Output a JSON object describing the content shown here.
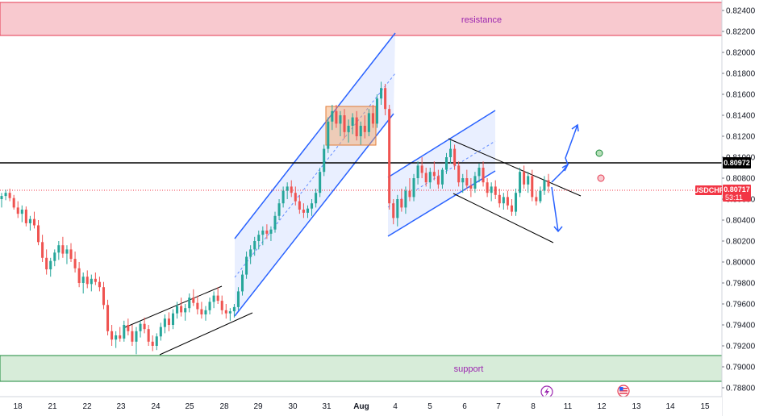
{
  "chart_data": {
    "type": "candlestick",
    "symbol": "USDCHF",
    "current_price": "0.80717",
    "countdown": "53:11",
    "marked_level": "0.80972",
    "ylim": [
      0.7876,
      0.8241
    ],
    "y_ticks": [
      "0.82400",
      "0.82200",
      "0.82000",
      "0.81800",
      "0.81600",
      "0.81400",
      "0.81200",
      "0.81000",
      "0.80800",
      "0.80600",
      "0.80400",
      "0.80200",
      "0.80000",
      "0.79800",
      "0.79600",
      "0.79400",
      "0.79200",
      "0.79000",
      "0.78800"
    ],
    "x_ticks": [
      "18",
      "21",
      "22",
      "23",
      "24",
      "25",
      "26",
      "28",
      "29",
      "30",
      "31",
      "Aug",
      "4",
      "5",
      "6",
      "7",
      "8",
      "11",
      "12",
      "13",
      "14",
      "15"
    ],
    "zones": [
      {
        "name": "resistance",
        "low": 0.8216,
        "high": 0.8248
      },
      {
        "name": "support",
        "low": 0.78915,
        "high": 0.79175
      }
    ],
    "colors": {
      "up": "#26a69a",
      "down": "#ef5350",
      "trendline": "#2962ff",
      "resistance_fill": "#f8c9cf",
      "resistance_border": "#e53950",
      "resistance_text": "#9c27b0",
      "support_fill": "#d7ecd9",
      "support_border": "#1b8a3a",
      "support_text": "#9c27b0",
      "current_tag": "#f23645",
      "level_line": "#000000"
    },
    "candles": [
      [
        0.806,
        0.8066,
        0.8052,
        0.8063
      ],
      [
        0.8063,
        0.8069,
        0.8059,
        0.8066
      ],
      [
        0.8066,
        0.807,
        0.8058,
        0.8061
      ],
      [
        0.8061,
        0.8064,
        0.805,
        0.8052
      ],
      [
        0.8052,
        0.8058,
        0.8042,
        0.8046
      ],
      [
        0.8046,
        0.8054,
        0.8038,
        0.805
      ],
      [
        0.805,
        0.8053,
        0.8034,
        0.8037
      ],
      [
        0.8037,
        0.8044,
        0.803,
        0.8041
      ],
      [
        0.8041,
        0.8048,
        0.8032,
        0.8035
      ],
      [
        0.8035,
        0.804,
        0.8016,
        0.8019
      ],
      [
        0.8019,
        0.8026,
        0.8,
        0.8004
      ],
      [
        0.8004,
        0.8012,
        0.7988,
        0.7993
      ],
      [
        0.7993,
        0.8004,
        0.7986,
        0.8001
      ],
      [
        0.8001,
        0.8012,
        0.7996,
        0.8009
      ],
      [
        0.8009,
        0.802,
        0.8002,
        0.8016
      ],
      [
        0.8016,
        0.8024,
        0.8004,
        0.8008
      ],
      [
        0.8008,
        0.8016,
        0.7998,
        0.8012
      ],
      [
        0.8012,
        0.8018,
        0.8,
        0.8003
      ],
      [
        0.8003,
        0.801,
        0.799,
        0.7994
      ],
      [
        0.7994,
        0.8,
        0.7976,
        0.798
      ],
      [
        0.798,
        0.799,
        0.797,
        0.7986
      ],
      [
        0.7986,
        0.7992,
        0.7975,
        0.7979
      ],
      [
        0.7979,
        0.7988,
        0.7972,
        0.7984
      ],
      [
        0.7984,
        0.799,
        0.7978,
        0.7981
      ],
      [
        0.7981,
        0.7986,
        0.7972,
        0.7976
      ],
      [
        0.7976,
        0.7981,
        0.7955,
        0.7959
      ],
      [
        0.7959,
        0.7964,
        0.793,
        0.7934
      ],
      [
        0.7934,
        0.794,
        0.792,
        0.7926
      ],
      [
        0.7926,
        0.7934,
        0.7918,
        0.793
      ],
      [
        0.793,
        0.7938,
        0.7924,
        0.7927
      ],
      [
        0.7927,
        0.7944,
        0.7924,
        0.794
      ],
      [
        0.794,
        0.7946,
        0.793,
        0.7934
      ],
      [
        0.7934,
        0.794,
        0.792,
        0.7924
      ],
      [
        0.7924,
        0.7938,
        0.7912,
        0.7934
      ],
      [
        0.7934,
        0.7944,
        0.7928,
        0.7941
      ],
      [
        0.7941,
        0.7947,
        0.7932,
        0.7936
      ],
      [
        0.7936,
        0.794,
        0.792,
        0.7924
      ],
      [
        0.7924,
        0.793,
        0.7915,
        0.792
      ],
      [
        0.792,
        0.7932,
        0.7916,
        0.7929
      ],
      [
        0.7929,
        0.7942,
        0.7925,
        0.7938
      ],
      [
        0.7938,
        0.795,
        0.7932,
        0.7946
      ],
      [
        0.7946,
        0.7952,
        0.7934,
        0.794
      ],
      [
        0.794,
        0.7955,
        0.7936,
        0.7951
      ],
      [
        0.7951,
        0.7962,
        0.7946,
        0.7958
      ],
      [
        0.7958,
        0.7966,
        0.7948,
        0.7952
      ],
      [
        0.7952,
        0.796,
        0.7944,
        0.7956
      ],
      [
        0.7956,
        0.797,
        0.7952,
        0.7966
      ],
      [
        0.7966,
        0.7974,
        0.7958,
        0.7961
      ],
      [
        0.7961,
        0.7968,
        0.795,
        0.7955
      ],
      [
        0.7955,
        0.7962,
        0.7946,
        0.795
      ],
      [
        0.795,
        0.7958,
        0.7944,
        0.7954
      ],
      [
        0.7954,
        0.7966,
        0.795,
        0.7962
      ],
      [
        0.7962,
        0.7972,
        0.7956,
        0.7968
      ],
      [
        0.7968,
        0.7976,
        0.796,
        0.7963
      ],
      [
        0.7963,
        0.7968,
        0.795,
        0.7954
      ],
      [
        0.7954,
        0.796,
        0.7946,
        0.7951
      ],
      [
        0.7951,
        0.7956,
        0.7944,
        0.7953
      ],
      [
        0.7953,
        0.796,
        0.7947,
        0.7957
      ],
      [
        0.7957,
        0.7976,
        0.7954,
        0.7972
      ],
      [
        0.7972,
        0.7992,
        0.7968,
        0.7988
      ],
      [
        0.7988,
        0.801,
        0.7984,
        0.8005
      ],
      [
        0.8005,
        0.8016,
        0.7998,
        0.8012
      ],
      [
        0.8012,
        0.8024,
        0.8006,
        0.802
      ],
      [
        0.802,
        0.803,
        0.8012,
        0.8026
      ],
      [
        0.8026,
        0.8034,
        0.8016,
        0.803
      ],
      [
        0.803,
        0.8036,
        0.8022,
        0.8027
      ],
      [
        0.8027,
        0.8034,
        0.802,
        0.8031
      ],
      [
        0.8031,
        0.8048,
        0.8028,
        0.8044
      ],
      [
        0.8044,
        0.806,
        0.804,
        0.8056
      ],
      [
        0.8056,
        0.8072,
        0.8052,
        0.8068
      ],
      [
        0.8068,
        0.8076,
        0.806,
        0.8072
      ],
      [
        0.8072,
        0.8078,
        0.8062,
        0.8066
      ],
      [
        0.8066,
        0.8072,
        0.8054,
        0.8058
      ],
      [
        0.8058,
        0.8064,
        0.8046,
        0.805
      ],
      [
        0.805,
        0.8056,
        0.8042,
        0.8047
      ],
      [
        0.8047,
        0.8054,
        0.8042,
        0.8051
      ],
      [
        0.8051,
        0.806,
        0.8044,
        0.8056
      ],
      [
        0.8056,
        0.807,
        0.8052,
        0.8066
      ],
      [
        0.8066,
        0.809,
        0.8062,
        0.8086
      ],
      [
        0.8086,
        0.8112,
        0.8082,
        0.8108
      ],
      [
        0.8108,
        0.8138,
        0.8104,
        0.8134
      ],
      [
        0.8134,
        0.815,
        0.8126,
        0.8144
      ],
      [
        0.8144,
        0.815,
        0.8128,
        0.8132
      ],
      [
        0.8132,
        0.8144,
        0.812,
        0.814
      ],
      [
        0.814,
        0.8146,
        0.8118,
        0.8124
      ],
      [
        0.8124,
        0.8136,
        0.8114,
        0.813
      ],
      [
        0.813,
        0.8142,
        0.8122,
        0.8138
      ],
      [
        0.8138,
        0.8144,
        0.8116,
        0.812
      ],
      [
        0.812,
        0.8134,
        0.8112,
        0.813
      ],
      [
        0.813,
        0.814,
        0.8118,
        0.8124
      ],
      [
        0.8124,
        0.8146,
        0.812,
        0.8142
      ],
      [
        0.8142,
        0.815,
        0.8128,
        0.8132
      ],
      [
        0.8132,
        0.816,
        0.8128,
        0.8156
      ],
      [
        0.8156,
        0.8172,
        0.815,
        0.8166
      ],
      [
        0.8166,
        0.817,
        0.814,
        0.8146
      ],
      [
        0.8146,
        0.815,
        0.805,
        0.8056
      ],
      [
        0.8056,
        0.806,
        0.8036,
        0.8042
      ],
      [
        0.8042,
        0.8064,
        0.8034,
        0.806
      ],
      [
        0.806,
        0.807,
        0.8048,
        0.8052
      ],
      [
        0.8052,
        0.8072,
        0.8046,
        0.8068
      ],
      [
        0.8068,
        0.808,
        0.8058,
        0.8062
      ],
      [
        0.8062,
        0.8084,
        0.8058,
        0.808
      ],
      [
        0.808,
        0.8096,
        0.8074,
        0.8092
      ],
      [
        0.8092,
        0.81,
        0.808,
        0.8085
      ],
      [
        0.8085,
        0.809,
        0.8072,
        0.8076
      ],
      [
        0.8076,
        0.809,
        0.807,
        0.8086
      ],
      [
        0.8086,
        0.8096,
        0.8078,
        0.8082
      ],
      [
        0.8082,
        0.8088,
        0.807,
        0.8074
      ],
      [
        0.8074,
        0.809,
        0.807,
        0.8088
      ],
      [
        0.8088,
        0.8104,
        0.8084,
        0.81
      ],
      [
        0.81,
        0.8116,
        0.8094,
        0.8108
      ],
      [
        0.8108,
        0.8112,
        0.8088,
        0.8092
      ],
      [
        0.8092,
        0.8096,
        0.8072,
        0.8076
      ],
      [
        0.8076,
        0.8084,
        0.8066,
        0.808
      ],
      [
        0.808,
        0.8088,
        0.807,
        0.8073
      ],
      [
        0.8073,
        0.808,
        0.8062,
        0.807
      ],
      [
        0.807,
        0.8086,
        0.8066,
        0.8082
      ],
      [
        0.8082,
        0.8094,
        0.8076,
        0.809
      ],
      [
        0.809,
        0.8096,
        0.8072,
        0.8076
      ],
      [
        0.8076,
        0.808,
        0.8062,
        0.8066
      ],
      [
        0.8066,
        0.8076,
        0.8058,
        0.8072
      ],
      [
        0.8072,
        0.8078,
        0.806,
        0.8064
      ],
      [
        0.8064,
        0.807,
        0.8052,
        0.8056
      ],
      [
        0.8056,
        0.8066,
        0.805,
        0.8062
      ],
      [
        0.8062,
        0.8068,
        0.805,
        0.8054
      ],
      [
        0.8054,
        0.806,
        0.8044,
        0.8048
      ],
      [
        0.8048,
        0.807,
        0.8044,
        0.8066
      ],
      [
        0.8066,
        0.809,
        0.8062,
        0.8086
      ],
      [
        0.8086,
        0.8092,
        0.807,
        0.8074
      ],
      [
        0.8074,
        0.8086,
        0.8066,
        0.8082
      ],
      [
        0.8082,
        0.8088,
        0.8058,
        0.8062
      ],
      [
        0.8062,
        0.8068,
        0.8054,
        0.8058
      ],
      [
        0.8058,
        0.8072,
        0.8056,
        0.8068
      ],
      [
        0.8068,
        0.8082,
        0.8064,
        0.8078
      ],
      [
        0.8078,
        0.8084,
        0.8066,
        0.8072
      ]
    ]
  }
}
